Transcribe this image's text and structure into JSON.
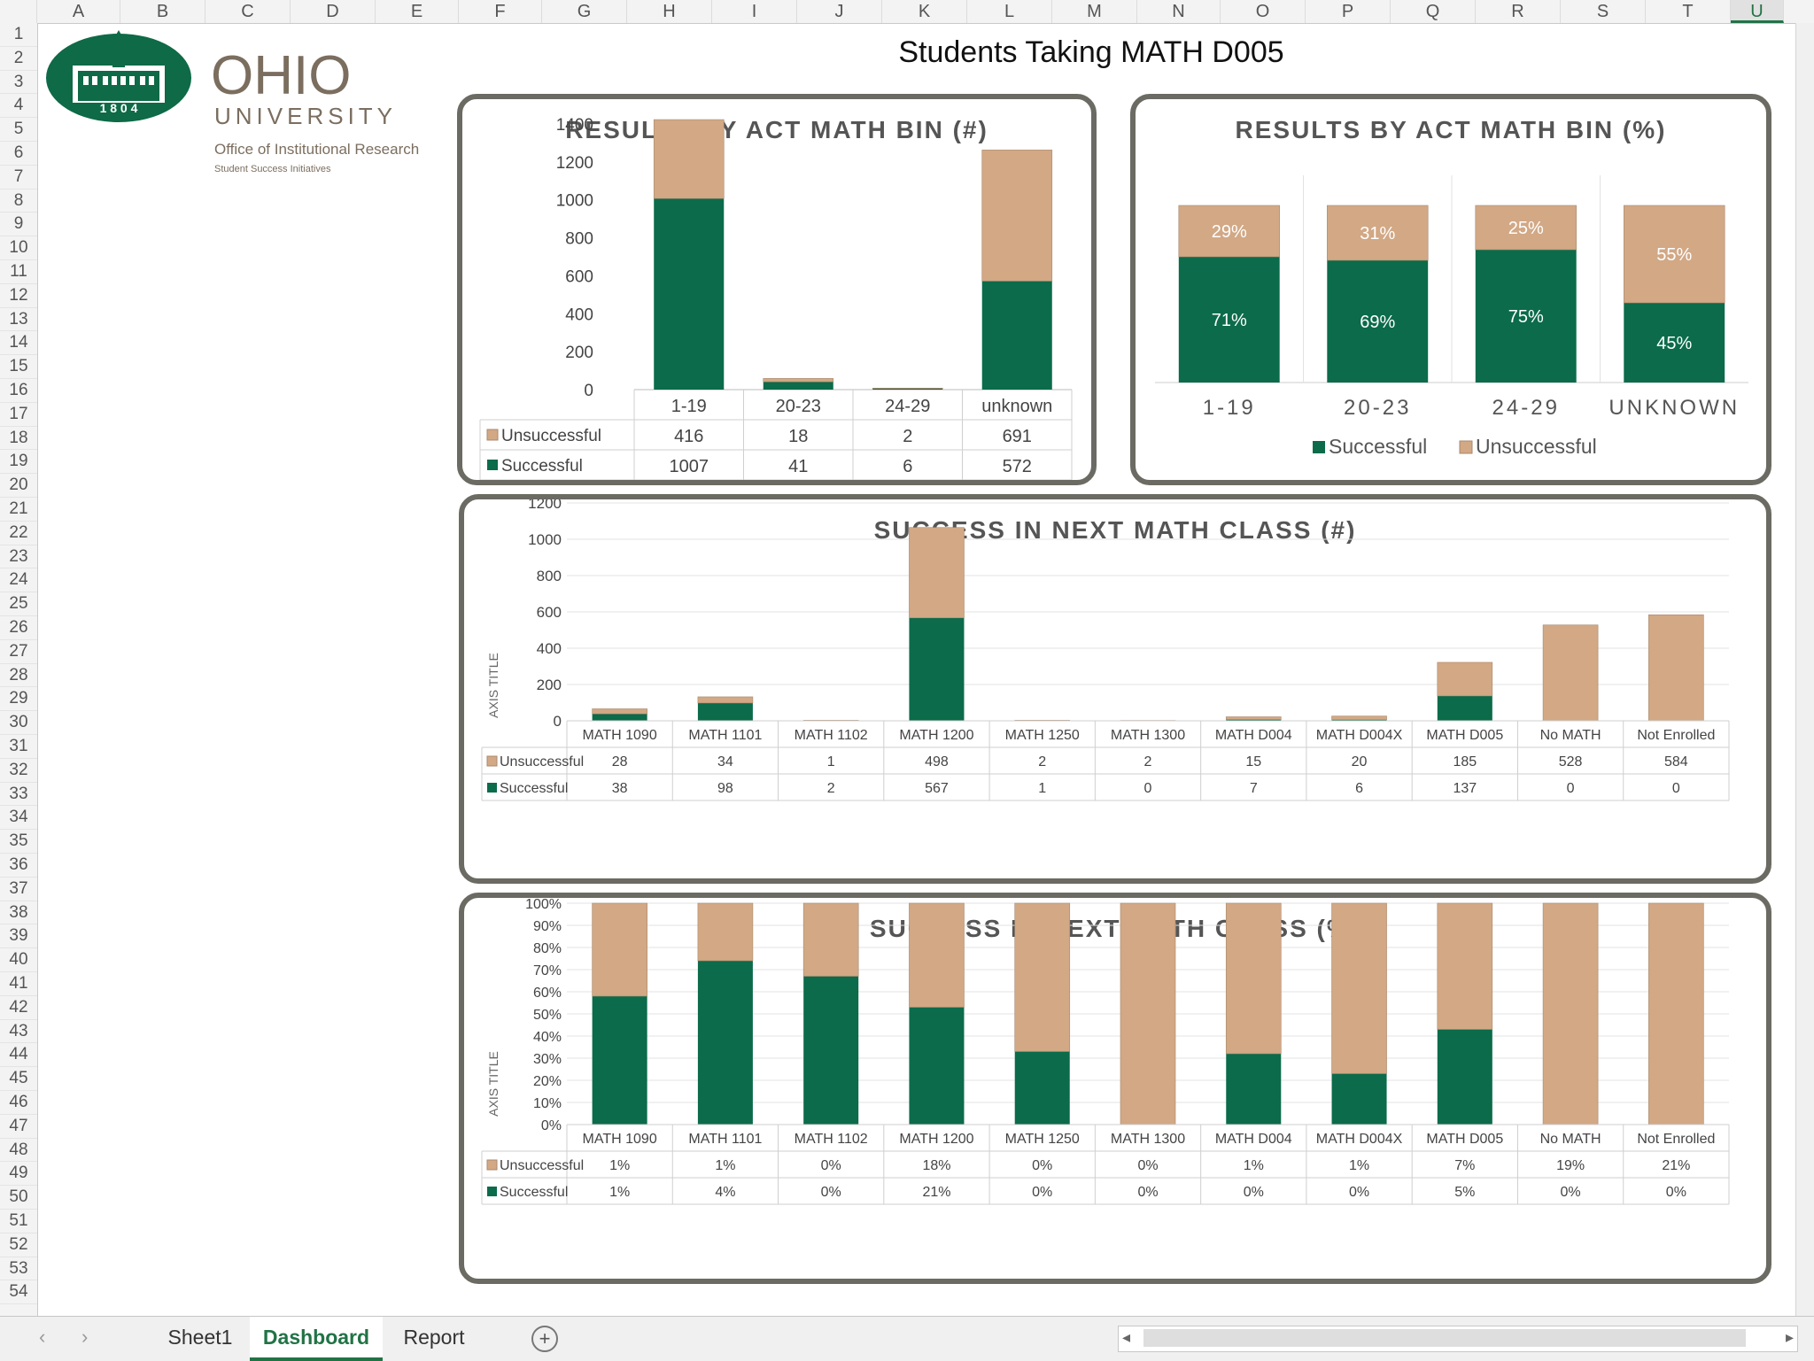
{
  "spreadsheet": {
    "columns": [
      "A",
      "B",
      "C",
      "D",
      "E",
      "F",
      "G",
      "H",
      "I",
      "J",
      "K",
      "L",
      "M",
      "N",
      "O",
      "P",
      "Q",
      "R",
      "S",
      "T",
      "U"
    ],
    "selected_column": "U",
    "rows": [
      "1",
      "2",
      "3",
      "4",
      "5",
      "6",
      "7",
      "8",
      "9",
      "10",
      "11",
      "12",
      "13",
      "14",
      "15",
      "16",
      "17",
      "18",
      "19",
      "20",
      "21",
      "22",
      "23",
      "24",
      "25",
      "26",
      "27",
      "28",
      "29",
      "30",
      "31",
      "32",
      "33",
      "34",
      "35",
      "36",
      "37",
      "38",
      "39",
      "40",
      "41",
      "42",
      "43",
      "44",
      "45",
      "46",
      "47",
      "48",
      "49",
      "50",
      "51",
      "52",
      "53",
      "54"
    ],
    "sheet_title": "Students Taking MATH D005",
    "tabs": [
      "Sheet1",
      "Dashboard",
      "Report"
    ],
    "active_tab": "Dashboard"
  },
  "logo": {
    "year": "1 8 0 4",
    "name": "OHIO",
    "subname": "UNIVERSITY",
    "office": "Office of Institutional Research",
    "division": "Student Success Initiatives"
  },
  "colors": {
    "successful": "#0b6b4a",
    "unsuccessful": "#d2a885",
    "frame": "#6b6b63",
    "logo_green": "#0e6a47",
    "logo_gray": "#7b6e5f"
  },
  "chart_data": [
    {
      "type": "bar",
      "stacked": true,
      "title": "RESULTS BY ACT MATH BIN (#)",
      "categories": [
        "1-19",
        "20-23",
        "24-29",
        "unknown"
      ],
      "series": [
        {
          "name": "Successful",
          "values": [
            1007,
            41,
            6,
            572
          ]
        },
        {
          "name": "Unsuccessful",
          "values": [
            416,
            18,
            2,
            691
          ]
        }
      ],
      "ylim": [
        0,
        1400
      ],
      "yticks": [
        "0",
        "200",
        "400",
        "600",
        "800",
        "1000",
        "1200",
        "1400"
      ],
      "table_labels": {
        "successful": "1007|41|6|572",
        "unsuccessful": "416|18|2|691"
      }
    },
    {
      "type": "bar",
      "stacked": true,
      "percent": true,
      "title": "RESULTS BY ACT MATH BIN (%)",
      "categories": [
        "1-19",
        "20-23",
        "24-29",
        "UNKNOWN"
      ],
      "series": [
        {
          "name": "Successful",
          "values": [
            71,
            69,
            75,
            45
          ],
          "labels": [
            "71%",
            "69%",
            "75%",
            "45%"
          ]
        },
        {
          "name": "Unsuccessful",
          "values": [
            29,
            31,
            25,
            55
          ],
          "labels": [
            "29%",
            "31%",
            "25%",
            "55%"
          ]
        }
      ],
      "legend": [
        "Successful",
        "Unsuccessful"
      ]
    },
    {
      "type": "bar",
      "stacked": true,
      "title": "SUCCESS IN NEXT MATH CLASS (#)",
      "ylabel": "AXIS TITLE",
      "categories": [
        "MATH 1090",
        "MATH 1101",
        "MATH 1102",
        "MATH 1200",
        "MATH 1250",
        "MATH 1300",
        "MATH D004",
        "MATH D004X",
        "MATH D005",
        "No MATH",
        "Not Enrolled"
      ],
      "series": [
        {
          "name": "Successful",
          "values": [
            38,
            98,
            2,
            567,
            1,
            0,
            7,
            6,
            137,
            0,
            0
          ]
        },
        {
          "name": "Unsuccessful",
          "values": [
            28,
            34,
            1,
            498,
            2,
            2,
            15,
            20,
            185,
            528,
            584
          ]
        }
      ],
      "ylim": [
        0,
        1200
      ],
      "yticks": [
        "0",
        "200",
        "400",
        "600",
        "800",
        "1000",
        "1200"
      ]
    },
    {
      "type": "bar",
      "stacked": true,
      "percent": true,
      "title": "SUCCESS IN NEXT MATH CLASS (%)",
      "ylabel": "AXIS TITLE",
      "categories": [
        "MATH 1090",
        "MATH 1101",
        "MATH 1102",
        "MATH 1200",
        "MATH 1250",
        "MATH 1300",
        "MATH D004",
        "MATH D004X",
        "MATH D005",
        "No MATH",
        "Not Enrolled"
      ],
      "bar_share_successful": [
        0.58,
        0.74,
        0.67,
        0.53,
        0.33,
        0,
        0.32,
        0.23,
        0.43,
        0,
        0
      ],
      "series": [
        {
          "name": "Successful",
          "labels": [
            "1%",
            "4%",
            "0%",
            "21%",
            "0%",
            "0%",
            "0%",
            "0%",
            "5%",
            "0%",
            "0%"
          ]
        },
        {
          "name": "Unsuccessful",
          "labels": [
            "1%",
            "1%",
            "0%",
            "18%",
            "0%",
            "0%",
            "1%",
            "1%",
            "7%",
            "19%",
            "21%"
          ]
        }
      ],
      "yticks": [
        "0%",
        "10%",
        "20%",
        "30%",
        "40%",
        "50%",
        "60%",
        "70%",
        "80%",
        "90%",
        "100%"
      ]
    }
  ]
}
